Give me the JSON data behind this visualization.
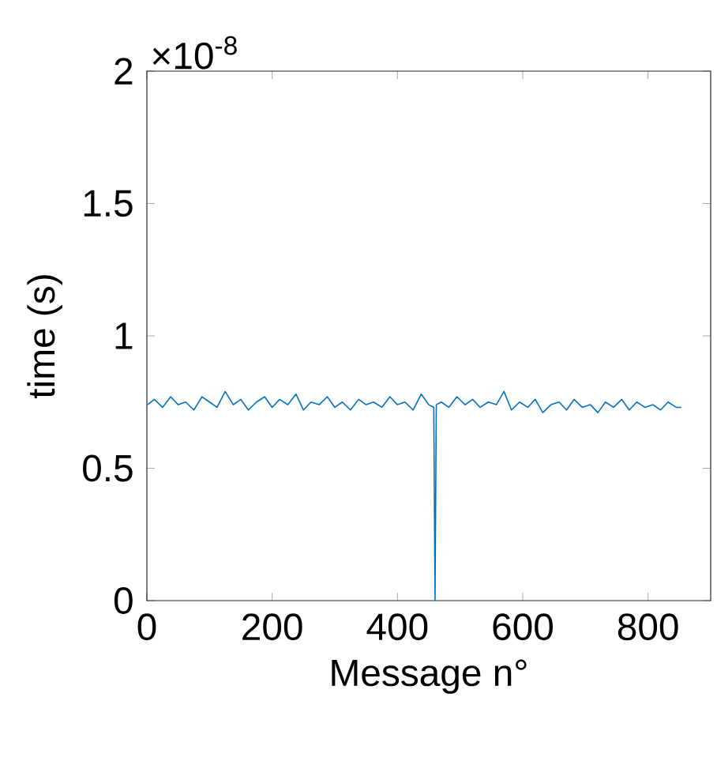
{
  "chart_data": {
    "type": "line",
    "xlabel": "Message n°",
    "ylabel": "time (s)",
    "annotations": [
      "×10$^{-8}$"
    ],
    "x": [
      1,
      12,
      25,
      38,
      50,
      62,
      75,
      88,
      100,
      112,
      125,
      138,
      150,
      162,
      175,
      188,
      200,
      212,
      225,
      238,
      250,
      262,
      275,
      288,
      300,
      312,
      325,
      338,
      350,
      362,
      375,
      388,
      400,
      412,
      425,
      438,
      450,
      458,
      460,
      462,
      470,
      482,
      495,
      508,
      520,
      532,
      545,
      558,
      570,
      582,
      595,
      608,
      620,
      632,
      645,
      658,
      670,
      682,
      695,
      708,
      720,
      732,
      745,
      758,
      770,
      782,
      795,
      808,
      820,
      832,
      845,
      853
    ],
    "series": [
      {
        "color": "#0072bd",
        "values": [
          0.74,
          0.76,
          0.73,
          0.77,
          0.74,
          0.75,
          0.72,
          0.77,
          0.75,
          0.73,
          0.79,
          0.74,
          0.76,
          0.72,
          0.75,
          0.77,
          0.73,
          0.76,
          0.74,
          0.78,
          0.72,
          0.75,
          0.74,
          0.77,
          0.73,
          0.75,
          0.72,
          0.76,
          0.74,
          0.75,
          0.73,
          0.77,
          0.74,
          0.75,
          0.72,
          0.78,
          0.74,
          0.73,
          0.0,
          0.74,
          0.75,
          0.73,
          0.77,
          0.74,
          0.76,
          0.73,
          0.75,
          0.74,
          0.79,
          0.72,
          0.75,
          0.73,
          0.76,
          0.71,
          0.74,
          0.75,
          0.72,
          0.76,
          0.73,
          0.74,
          0.71,
          0.75,
          0.73,
          0.76,
          0.72,
          0.75,
          0.73,
          0.74,
          0.72,
          0.75,
          0.73,
          0.73
        ]
      }
    ],
    "xlim": [
      0,
      900
    ],
    "ylim": [
      0,
      2
    ],
    "xticks": [
      0,
      200,
      400,
      600,
      800
    ],
    "yticks": [
      0,
      0.5,
      1,
      1.5,
      2
    ],
    "line_style": "solid",
    "marker": "none"
  }
}
